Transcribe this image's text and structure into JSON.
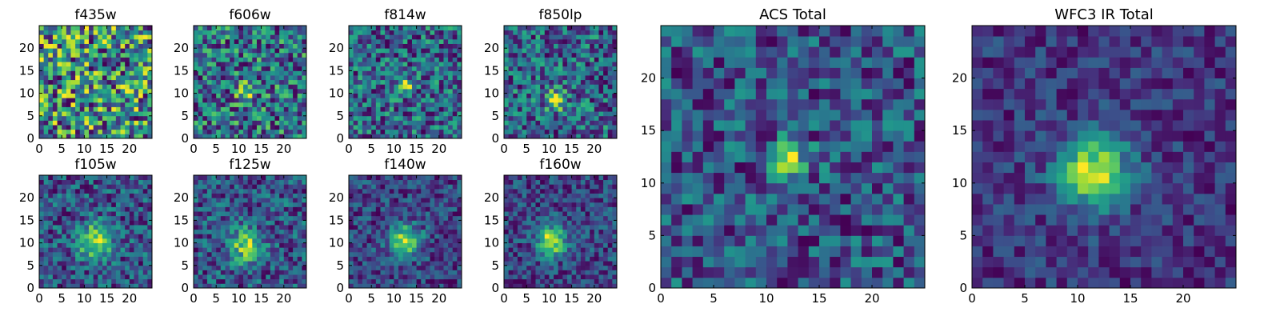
{
  "chart_data": [
    {
      "type": "heatmap",
      "title": "f435w",
      "xlim": [
        0,
        25
      ],
      "ylim": [
        0,
        25
      ],
      "size": 25,
      "xticks": [
        0,
        5,
        10,
        15,
        20
      ],
      "yticks": [
        0,
        5,
        10,
        15,
        20
      ],
      "source": {
        "center": [
          12,
          11
        ],
        "sigma": 1.5,
        "amplitude": 0.0,
        "noise": 0.45,
        "base": 0.5,
        "seed": 11
      }
    },
    {
      "type": "heatmap",
      "title": "f606w",
      "xlim": [
        0,
        25
      ],
      "ylim": [
        0,
        25
      ],
      "size": 25,
      "xticks": [
        0,
        5,
        10,
        15,
        20
      ],
      "yticks": [
        0,
        5,
        10,
        15,
        20
      ],
      "source": {
        "center": [
          11,
          10
        ],
        "sigma": 1.3,
        "amplitude": 0.45,
        "noise": 0.32,
        "base": 0.45,
        "seed": 23
      }
    },
    {
      "type": "heatmap",
      "title": "f814w",
      "xlim": [
        0,
        25
      ],
      "ylim": [
        0,
        25
      ],
      "size": 25,
      "xticks": [
        0,
        5,
        10,
        15,
        20
      ],
      "yticks": [
        0,
        5,
        10,
        15,
        20
      ],
      "source": {
        "center": [
          12,
          11
        ],
        "sigma": 1.2,
        "amplitude": 0.5,
        "noise": 0.33,
        "base": 0.4,
        "seed": 37
      }
    },
    {
      "type": "heatmap",
      "title": "f850lp",
      "xlim": [
        0,
        25
      ],
      "ylim": [
        0,
        25
      ],
      "size": 25,
      "xticks": [
        0,
        5,
        10,
        15,
        20
      ],
      "yticks": [
        0,
        5,
        10,
        15,
        20
      ],
      "source": {
        "center": [
          11,
          8
        ],
        "sigma": 1.6,
        "amplitude": 0.45,
        "noise": 0.3,
        "base": 0.45,
        "seed": 53
      }
    },
    {
      "type": "heatmap",
      "title": "f105w",
      "xlim": [
        0,
        25
      ],
      "ylim": [
        0,
        25
      ],
      "size": 25,
      "xticks": [
        0,
        5,
        10,
        15,
        20
      ],
      "yticks": [
        0,
        5,
        10,
        15,
        20
      ],
      "source": {
        "center": [
          12,
          10
        ],
        "sigma": 2.5,
        "amplitude": 0.55,
        "noise": 0.22,
        "base": 0.35,
        "seed": 61
      }
    },
    {
      "type": "heatmap",
      "title": "f125w",
      "xlim": [
        0,
        25
      ],
      "ylim": [
        0,
        25
      ],
      "size": 25,
      "xticks": [
        0,
        5,
        10,
        15,
        20
      ],
      "yticks": [
        0,
        5,
        10,
        15,
        20
      ],
      "source": {
        "center": [
          11,
          9
        ],
        "sigma": 2.6,
        "amplitude": 0.5,
        "noise": 0.24,
        "base": 0.4,
        "seed": 71
      }
    },
    {
      "type": "heatmap",
      "title": "f140w",
      "xlim": [
        0,
        25
      ],
      "ylim": [
        0,
        25
      ],
      "size": 25,
      "xticks": [
        0,
        5,
        10,
        15,
        20
      ],
      "yticks": [
        0,
        5,
        10,
        15,
        20
      ],
      "source": {
        "center": [
          12,
          10
        ],
        "sigma": 2.3,
        "amplitude": 0.6,
        "noise": 0.18,
        "base": 0.35,
        "seed": 83
      }
    },
    {
      "type": "heatmap",
      "title": "f160w",
      "xlim": [
        0,
        25
      ],
      "ylim": [
        0,
        25
      ],
      "size": 25,
      "xticks": [
        0,
        5,
        10,
        15,
        20
      ],
      "yticks": [
        0,
        5,
        10,
        15,
        20
      ],
      "source": {
        "center": [
          10,
          10
        ],
        "sigma": 2.2,
        "amplitude": 0.6,
        "noise": 0.18,
        "base": 0.32,
        "seed": 97
      }
    },
    {
      "type": "heatmap",
      "title": "ACS Total",
      "xlim": [
        0,
        25
      ],
      "ylim": [
        0,
        25
      ],
      "size": 25,
      "xticks": [
        0,
        5,
        10,
        15,
        20
      ],
      "yticks": [
        0,
        5,
        10,
        15,
        20
      ],
      "source": {
        "center": [
          11.5,
          11.5
        ],
        "sigma": 1.3,
        "amplitude": 0.5,
        "noise": 0.22,
        "base": 0.42,
        "seed": 107
      }
    },
    {
      "type": "heatmap",
      "title": "WFC3 IR Total",
      "xlim": [
        0,
        25
      ],
      "ylim": [
        0,
        25
      ],
      "size": 25,
      "xticks": [
        0,
        5,
        10,
        15,
        20
      ],
      "yticks": [
        0,
        5,
        10,
        15,
        20
      ],
      "source": {
        "center": [
          11,
          10.5
        ],
        "sigma": 2.4,
        "amplitude": 0.6,
        "noise": 0.13,
        "base": 0.3,
        "seed": 127
      }
    }
  ],
  "colormap": "viridis",
  "colors": {
    "axes_edge": "#000000",
    "background": "#ffffff"
  }
}
